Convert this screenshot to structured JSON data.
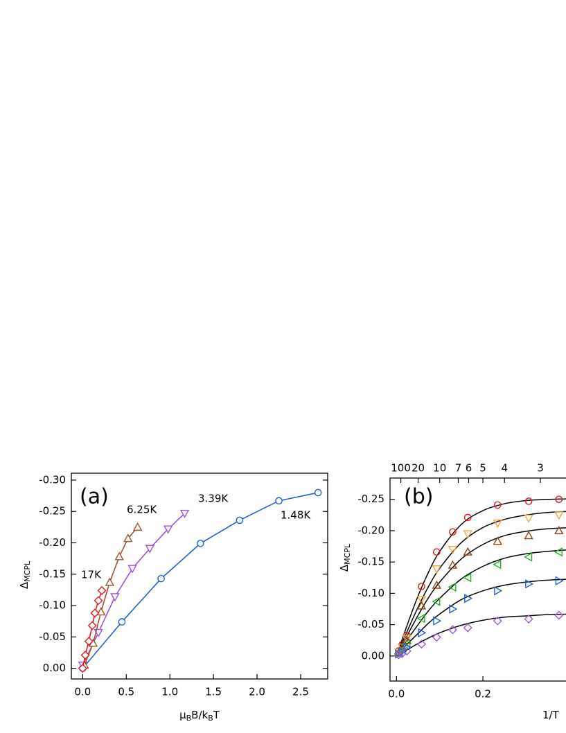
{
  "chart_data": [
    {
      "type": "line",
      "panel_label": "(a)",
      "xlabel": [
        "μ",
        "B",
        "B/k",
        "B",
        "T"
      ],
      "ylabel": [
        "Δ",
        "MCPL"
      ],
      "xlim": [
        -0.13,
        2.81
      ],
      "ylim": [
        0.017,
        -0.311
      ],
      "xticks": [
        {
          "value": 0,
          "label": "0.0"
        },
        0.5,
        {
          "value": 1,
          "label": "1.0"
        },
        1.5,
        {
          "value": 2,
          "label": "2.0"
        },
        2.5
      ],
      "yticks": [
        {
          "value": -0.3,
          "label": "-0.30"
        },
        -0.25,
        {
          "value": -0.2,
          "label": "-0.20"
        },
        -0.15,
        {
          "value": -0.1,
          "label": "-0.10"
        },
        -0.05,
        {
          "value": 0,
          "label": "0.00"
        }
      ],
      "series": [
        {
          "name": "1.48K",
          "color": "#1f5fd6",
          "marker": "circle",
          "x": [
            0,
            0.45,
            0.9,
            1.35,
            1.8,
            2.25,
            2.7
          ],
          "values": [
            0,
            -0.074,
            -0.143,
            -0.199,
            -0.236,
            -0.267,
            -0.28
          ]
        },
        {
          "name": "3.39K",
          "color": "#a04fe0",
          "marker": "triangle-down",
          "x": [
            0,
            0.18,
            0.37,
            0.57,
            0.77,
            0.98,
            1.17
          ],
          "values": [
            -0.005,
            -0.057,
            -0.114,
            -0.159,
            -0.191,
            -0.222,
            -0.247
          ]
        },
        {
          "name": "6.25K",
          "color": "#a0522d",
          "marker": "triangle-up",
          "x": [
            0.02,
            0.12,
            0.21,
            0.31,
            0.42,
            0.52,
            0.63
          ],
          "values": [
            -0.005,
            -0.04,
            -0.09,
            -0.137,
            -0.178,
            -0.207,
            -0.225
          ]
        },
        {
          "name": "17K",
          "color": "#e31a1c",
          "marker": "diamond",
          "x": [
            0,
            0.03,
            0.07,
            0.11,
            0.14,
            0.18,
            0.22
          ],
          "values": [
            0,
            -0.021,
            -0.043,
            -0.068,
            -0.088,
            -0.108,
            -0.124
          ]
        }
      ]
    },
    {
      "type": "scatter-fit",
      "panel_label": "(b)",
      "xlabel": [
        "1/T"
      ],
      "ylabel": [
        "Δ",
        "MCPL"
      ],
      "xlim": [
        -0.015,
        0.41
      ],
      "ylim": [
        0.04,
        -0.284
      ],
      "xticks": [
        {
          "value": 0,
          "label": "0.0"
        },
        0.2
      ],
      "x2ticks": [
        {
          "value": 0.01,
          "label": "100"
        },
        {
          "value": 0.05,
          "label": "20"
        },
        {
          "value": 0.1,
          "label": "10"
        },
        {
          "value": 0.143,
          "label": "7"
        },
        {
          "value": 0.167,
          "label": "6"
        },
        {
          "value": 0.2,
          "label": "5"
        },
        {
          "value": 0.25,
          "label": "4"
        },
        {
          "value": 0.333,
          "label": "3"
        }
      ],
      "yticks": [
        -0.25,
        {
          "value": -0.2,
          "label": "-0.20"
        },
        -0.15,
        {
          "value": -0.1,
          "label": "-0.10"
        },
        -0.05,
        {
          "value": 0,
          "label": "0.00"
        }
      ],
      "x": [
        0.005,
        0.013,
        0.024,
        0.058,
        0.093,
        0.13,
        0.165,
        0.234,
        0.306,
        0.376
      ],
      "fit_x": [
        0,
        0.025,
        0.05,
        0.075,
        0.1,
        0.15,
        0.2,
        0.25,
        0.3,
        0.35,
        0.41
      ],
      "series": [
        {
          "color": "#e31a1c",
          "marker": "circle",
          "values": [
            -0.008,
            -0.018,
            -0.033,
            -0.111,
            -0.166,
            -0.198,
            -0.221,
            -0.241,
            -0.247,
            -0.25
          ],
          "fit": [
            0,
            -0.05,
            -0.096,
            -0.135,
            -0.167,
            -0.21,
            -0.232,
            -0.243,
            -0.248,
            -0.25,
            -0.251
          ]
        },
        {
          "color": "#f4a340",
          "marker": "triangle-down",
          "values": [
            -0.006,
            -0.014,
            -0.028,
            -0.09,
            -0.139,
            -0.17,
            -0.195,
            -0.212,
            -0.22,
            -0.225
          ],
          "fit": [
            0,
            -0.04,
            -0.078,
            -0.112,
            -0.14,
            -0.181,
            -0.205,
            -0.218,
            -0.225,
            -0.229,
            -0.231
          ]
        },
        {
          "color": "#8b4513",
          "marker": "triangle-up",
          "values": [
            -0.005,
            -0.012,
            -0.025,
            -0.08,
            -0.113,
            -0.145,
            -0.166,
            -0.183,
            -0.192,
            -0.2
          ],
          "fit": [
            0,
            -0.033,
            -0.065,
            -0.094,
            -0.118,
            -0.155,
            -0.178,
            -0.192,
            -0.199,
            -0.203,
            -0.205
          ]
        },
        {
          "color": "#22b022",
          "marker": "triangle-left",
          "values": [
            -0.004,
            -0.01,
            -0.02,
            -0.06,
            -0.087,
            -0.11,
            -0.125,
            -0.146,
            -0.158,
            -0.166
          ],
          "fit": [
            0,
            -0.026,
            -0.05,
            -0.073,
            -0.092,
            -0.123,
            -0.143,
            -0.156,
            -0.163,
            -0.167,
            -0.17
          ]
        },
        {
          "color": "#1f5fd6",
          "marker": "triangle-right",
          "values": [
            -0.003,
            -0.007,
            -0.014,
            -0.037,
            -0.056,
            -0.075,
            -0.092,
            -0.104,
            -0.115,
            -0.12
          ],
          "fit": [
            0,
            -0.019,
            -0.036,
            -0.053,
            -0.067,
            -0.09,
            -0.104,
            -0.113,
            -0.118,
            -0.121,
            -0.123
          ]
        },
        {
          "color": "#9b59d6",
          "marker": "diamond",
          "values": [
            -0.002,
            -0.004,
            -0.008,
            -0.019,
            -0.03,
            -0.042,
            -0.045,
            -0.056,
            -0.059,
            -0.065
          ],
          "fit": [
            0,
            -0.01,
            -0.02,
            -0.029,
            -0.037,
            -0.049,
            -0.057,
            -0.062,
            -0.064,
            -0.066,
            -0.067
          ]
        }
      ]
    }
  ]
}
